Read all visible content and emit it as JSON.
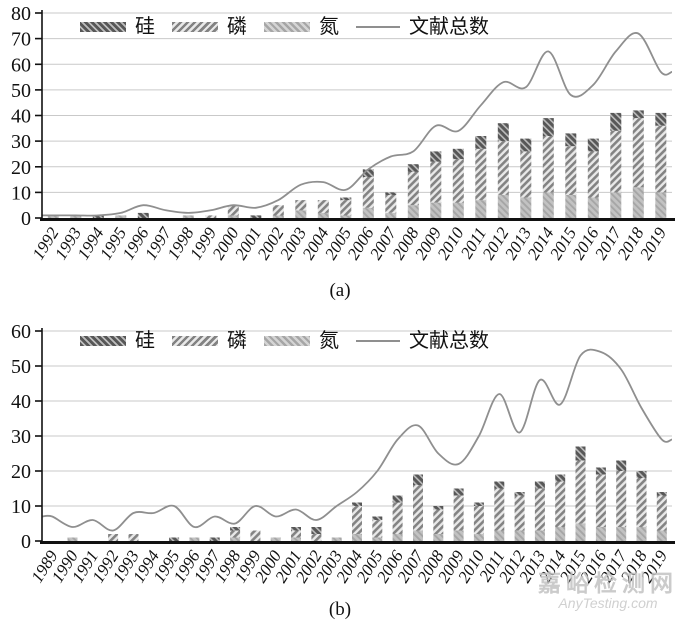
{
  "watermark": {
    "site_name": "嘉峪检测网",
    "site_url": "AnyTesting.com"
  },
  "chart_data": [
    {
      "type": "bar",
      "stacked": true,
      "caption": "(a)",
      "title": "",
      "xlabel": "",
      "ylabel": "",
      "ylim": [
        0,
        80
      ],
      "yticks": [
        0,
        10,
        20,
        30,
        40,
        50,
        60,
        70,
        80
      ],
      "grid": true,
      "legend_position": "top",
      "categories": [
        "1992",
        "1993",
        "1994",
        "1995",
        "1996",
        "1997",
        "1998",
        "1999",
        "2000",
        "2001",
        "2002",
        "2003",
        "2004",
        "2005",
        "2006",
        "2007",
        "2008",
        "2009",
        "2010",
        "2011",
        "2012",
        "2013",
        "2014",
        "2015",
        "2016",
        "2017",
        "2018",
        "2019"
      ],
      "series": [
        {
          "name": "硅",
          "key": "si",
          "values": [
            0,
            0,
            1,
            0,
            2,
            0,
            0,
            0,
            0,
            1,
            0,
            0,
            0,
            1,
            3,
            1,
            3,
            4,
            4,
            5,
            7,
            5,
            7,
            5,
            5,
            7,
            3,
            5
          ]
        },
        {
          "name": "磷",
          "key": "p",
          "values": [
            0,
            0,
            0,
            0,
            0,
            0,
            0,
            1,
            4,
            0,
            4,
            4,
            5,
            6,
            12,
            7,
            13,
            16,
            17,
            20,
            21,
            18,
            22,
            19,
            18,
            24,
            27,
            26
          ]
        },
        {
          "name": "氮",
          "key": "n",
          "values": [
            1,
            1,
            0,
            1,
            0,
            0,
            1,
            0,
            1,
            0,
            1,
            3,
            2,
            1,
            4,
            2,
            5,
            6,
            6,
            7,
            9,
            8,
            10,
            9,
            8,
            10,
            12,
            10
          ]
        }
      ],
      "stack_order": [
        "n",
        "p",
        "si"
      ],
      "line_series": {
        "name": "文献总数",
        "values": [
          1,
          1,
          1,
          2,
          5,
          3,
          2,
          3,
          5,
          4,
          7,
          13,
          14,
          11,
          19,
          24,
          26,
          36,
          34,
          44,
          53,
          51,
          65,
          48,
          52,
          65,
          72,
          57
        ]
      }
    },
    {
      "type": "bar",
      "stacked": true,
      "caption": "(b)",
      "title": "",
      "xlabel": "",
      "ylabel": "",
      "ylim": [
        0,
        60
      ],
      "yticks": [
        0,
        10,
        20,
        30,
        40,
        50,
        60
      ],
      "grid": true,
      "legend_position": "top",
      "categories": [
        "1989",
        "1990",
        "1991",
        "1992",
        "1993",
        "1994",
        "1995",
        "1996",
        "1997",
        "1998",
        "1999",
        "2000",
        "2001",
        "2002",
        "2003",
        "2004",
        "2005",
        "2006",
        "2007",
        "2008",
        "2009",
        "2010",
        "2011",
        "2012",
        "2013",
        "2014",
        "2015",
        "2016",
        "2017",
        "2018",
        "2019"
      ],
      "series": [
        {
          "name": "硅",
          "key": "si",
          "values": [
            0,
            0,
            0,
            0,
            0,
            0,
            1,
            0,
            1,
            1,
            0,
            0,
            1,
            2,
            0,
            1,
            1,
            2,
            3,
            1,
            2,
            1,
            2,
            1,
            2,
            2,
            4,
            2,
            3,
            2,
            1
          ]
        },
        {
          "name": "磷",
          "key": "p",
          "values": [
            0,
            0,
            0,
            2,
            2,
            0,
            0,
            0,
            0,
            2,
            3,
            0,
            2,
            2,
            0,
            8,
            5,
            9,
            13,
            7,
            10,
            8,
            12,
            10,
            12,
            13,
            18,
            15,
            16,
            14,
            10
          ]
        },
        {
          "name": "氮",
          "key": "n",
          "values": [
            0,
            1,
            0,
            0,
            0,
            0,
            0,
            1,
            0,
            1,
            0,
            1,
            1,
            0,
            1,
            2,
            1,
            2,
            3,
            2,
            3,
            2,
            3,
            3,
            3,
            4,
            5,
            4,
            4,
            4,
            3
          ]
        }
      ],
      "stack_order": [
        "n",
        "p",
        "si"
      ],
      "line_series": {
        "name": "文献总数",
        "values": [
          7,
          4,
          6,
          3,
          8,
          8,
          10,
          4,
          7,
          5,
          10,
          7,
          9,
          6,
          10,
          14,
          20,
          29,
          33,
          25,
          22,
          30,
          42,
          31,
          46,
          39,
          53,
          54,
          49,
          38,
          29
        ]
      }
    }
  ],
  "style": {
    "line_color": "#8f8f8f",
    "grid_color": "#c9c9c9",
    "axis_color": "#111111",
    "pattern_si": {
      "base": "#575757",
      "stripe": "#bdbdbd",
      "direction": "\\"
    },
    "pattern_p": {
      "base": "#e9e9e9",
      "stripe": "#838383",
      "direction": "/"
    },
    "pattern_n": {
      "base": "#c2c2c2",
      "stripe": "#a6a6a6",
      "direction": "\\"
    }
  }
}
